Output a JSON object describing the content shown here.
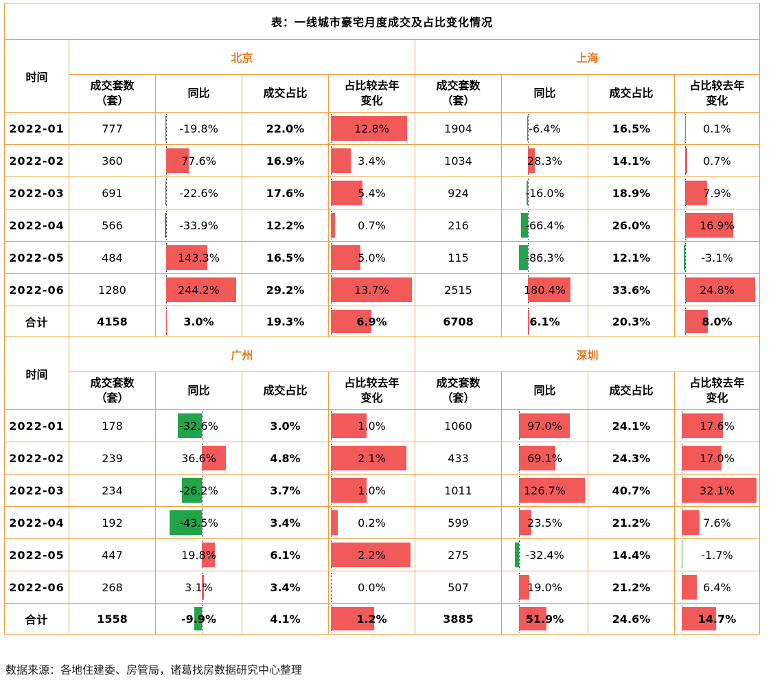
{
  "title": "表：一线城市豪宅月度成交及占比变化情况",
  "time_label": "时间",
  "headers": [
    "成交套数\n（套）",
    "同比",
    "成交占比",
    "占比较去年\n变化"
  ],
  "colors": {
    "border": "#f0a040",
    "city_text": "#e0781e",
    "positive_bar": "#f25a5a",
    "negative_bar": "#22a548"
  },
  "top": {
    "left_city": "北京",
    "right_city": "上海",
    "rows": [
      {
        "date": "2022-01",
        "l": [
          "777",
          "-19.8%",
          "22.0%",
          "12.8%"
        ],
        "r": [
          "1904",
          "-6.4%",
          "16.5%",
          "0.1%"
        ]
      },
      {
        "date": "2022-02",
        "l": [
          "360",
          "77.6%",
          "16.9%",
          "3.4%"
        ],
        "r": [
          "1034",
          "28.3%",
          "14.1%",
          "0.7%"
        ]
      },
      {
        "date": "2022-03",
        "l": [
          "691",
          "-22.6%",
          "17.6%",
          "5.4%"
        ],
        "r": [
          "924",
          "-16.0%",
          "18.9%",
          "7.9%"
        ]
      },
      {
        "date": "2022-04",
        "l": [
          "566",
          "-33.9%",
          "12.2%",
          "0.7%"
        ],
        "r": [
          "216",
          "-66.4%",
          "26.0%",
          "16.9%"
        ]
      },
      {
        "date": "2022-05",
        "l": [
          "484",
          "143.3%",
          "16.5%",
          "5.0%"
        ],
        "r": [
          "115",
          "-86.3%",
          "12.1%",
          "-3.1%"
        ]
      },
      {
        "date": "2022-06",
        "l": [
          "1280",
          "244.2%",
          "29.2%",
          "13.7%"
        ],
        "r": [
          "2515",
          "180.4%",
          "33.6%",
          "24.8%"
        ]
      },
      {
        "date": "合计",
        "l": [
          "4158",
          "3.0%",
          "19.3%",
          "6.9%"
        ],
        "r": [
          "6708",
          "6.1%",
          "20.3%",
          "8.0%"
        ]
      }
    ]
  },
  "bottom": {
    "left_city": "广州",
    "right_city": "深圳",
    "rows": [
      {
        "date": "2022-01",
        "l": [
          "178",
          "-32.6%",
          "3.0%",
          "1.0%"
        ],
        "r": [
          "1060",
          "97.0%",
          "24.1%",
          "17.6%"
        ]
      },
      {
        "date": "2022-02",
        "l": [
          "239",
          "36.6%",
          "4.8%",
          "2.1%"
        ],
        "r": [
          "433",
          "69.1%",
          "24.3%",
          "17.0%"
        ]
      },
      {
        "date": "2022-03",
        "l": [
          "234",
          "-26.2%",
          "3.7%",
          "1.0%"
        ],
        "r": [
          "1011",
          "126.7%",
          "40.7%",
          "32.1%"
        ]
      },
      {
        "date": "2022-04",
        "l": [
          "192",
          "-43.5%",
          "3.4%",
          "0.2%"
        ],
        "r": [
          "599",
          "23.5%",
          "21.2%",
          "7.6%"
        ]
      },
      {
        "date": "2022-05",
        "l": [
          "447",
          "19.8%",
          "6.1%",
          "2.2%"
        ],
        "r": [
          "275",
          "-32.4%",
          "14.4%",
          "-1.7%"
        ]
      },
      {
        "date": "2022-06",
        "l": [
          "268",
          "3.1%",
          "3.4%",
          "0.0%"
        ],
        "r": [
          "507",
          "19.0%",
          "21.2%",
          "6.4%"
        ]
      },
      {
        "date": "合计",
        "l": [
          "1558",
          "-9.9%",
          "4.1%",
          "1.2%"
        ],
        "r": [
          "3885",
          "51.9%",
          "24.6%",
          "14.7%"
        ]
      }
    ]
  },
  "source": "数据来源：各地住建委、房管局，诸葛找房数据研究中心整理"
}
